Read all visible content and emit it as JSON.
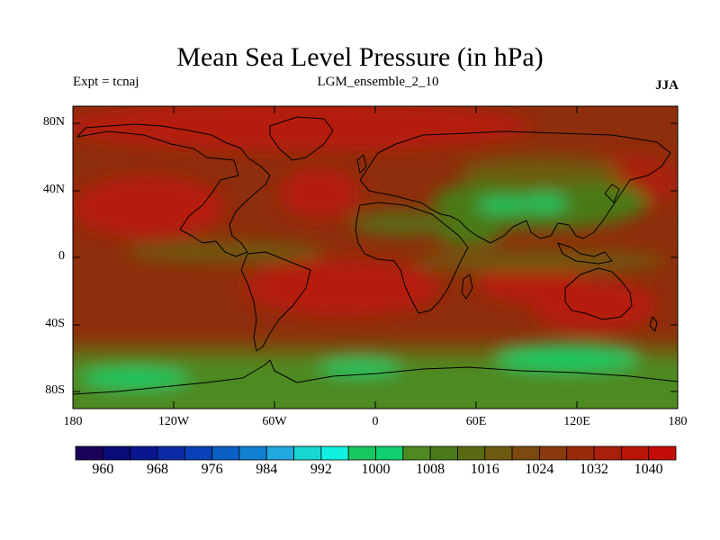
{
  "title": "Mean Sea Level Pressure (in hPa)",
  "experiment": "Expt = tcnaj",
  "ensemble": "LGM_ensemble_2_10",
  "season": "JJA",
  "latitude_labels": [
    "80N",
    "40N",
    "0",
    "40S",
    "80S"
  ],
  "longitude_labels": [
    "180",
    "120W",
    "60W",
    "0",
    "60E",
    "120E",
    "180"
  ],
  "colorbar": {
    "labels": [
      "960",
      "968",
      "976",
      "984",
      "992",
      "1000",
      "1008",
      "1016",
      "1024",
      "1032",
      "1040"
    ],
    "colors": [
      "#1a0057",
      "#0a0a78",
      "#0a1590",
      "#0a2aa8",
      "#0a40b8",
      "#0a5fc4",
      "#1080d0",
      "#20a8e0",
      "#19d6d0",
      "#10f0e0",
      "#18c860",
      "#10d070",
      "#4e8a20",
      "#4a7a18",
      "#5a6a12",
      "#6e5a10",
      "#7a4a0e",
      "#8a3a0c",
      "#9a2a0c",
      "#aa1e0c",
      "#b81408",
      "#c40c08"
    ]
  },
  "colors": {
    "high_pressure": "#b51a0a",
    "mid_high": "#9a2a0c",
    "mid": "#7a4a0e",
    "low_mid": "#4e8a20",
    "low": "#18c860",
    "coast": "#000000"
  }
}
